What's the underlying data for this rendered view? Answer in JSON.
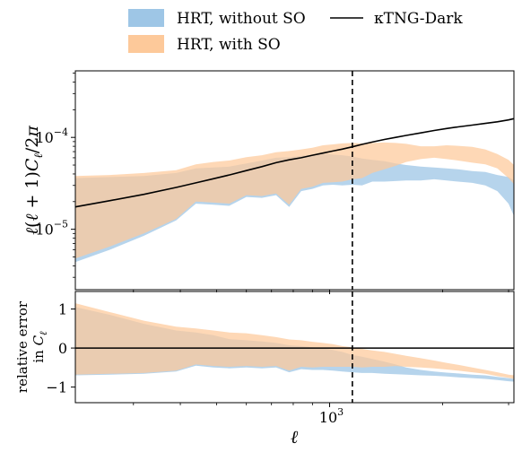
{
  "chart_data": {
    "type": "area",
    "legend": {
      "placement": "top",
      "entries": [
        {
          "label": "HRT, without SO",
          "kind": "band",
          "color": "#9ec6e6"
        },
        {
          "label": "HRT, with SO",
          "kind": "band",
          "color": "#fdc99a"
        },
        {
          "label": "κTNG-Dark",
          "kind": "line",
          "color": "#000000"
        }
      ]
    },
    "x_axis": {
      "label": "ℓ",
      "scale": "log",
      "range": [
        210,
        3100
      ],
      "major_ticks": [
        {
          "value": 1000,
          "label": "10",
          "exponent": "3"
        }
      ],
      "minor_ticks": [
        300,
        400,
        500,
        600,
        700,
        800,
        900,
        2000,
        3000
      ]
    },
    "vline": {
      "x": 1150,
      "style": "dashed",
      "color": "#000000"
    },
    "panels": [
      {
        "id": "spectrum",
        "ylabel": "ℓ(ℓ + 1)C_ℓ/2π",
        "yscale": "log",
        "ylim": [
          2.2e-06,
          0.00053
        ],
        "y_ticks": [
          {
            "value": 1e-05,
            "label": "10",
            "exponent": "−5"
          },
          {
            "value": 0.0001,
            "label": "10",
            "exponent": "−4"
          }
        ],
        "y_minor_ticks": [
          3e-06,
          4e-06,
          5e-06,
          6e-06,
          7e-06,
          8e-06,
          9e-06,
          2e-05,
          3e-05,
          4e-05,
          5e-05,
          6e-05,
          7e-05,
          8e-05,
          9e-05,
          0.0002,
          0.0003,
          0.0004,
          0.0005
        ],
        "series": [
          {
            "name": "HRT, without SO",
            "kind": "band",
            "color": "#9ec6e6",
            "x": [
              210,
              260,
              320,
              390,
              440,
              490,
              540,
              600,
              660,
              720,
              780,
              840,
              900,
              960,
              1020,
              1080,
              1150,
              1220,
              1300,
              1400,
              1500,
              1600,
              1750,
              1900,
              2050,
              2200,
              2400,
              2600,
              2800,
              3000,
              3100
            ],
            "lower": [
              4.4e-06,
              6e-06,
              8.5e-06,
              1.25e-05,
              1.9e-05,
              1.85e-05,
              1.8e-05,
              2.25e-05,
              2.2e-05,
              2.35e-05,
              1.75e-05,
              2.6e-05,
              2.75e-05,
              3e-05,
              3.05e-05,
              3e-05,
              3.05e-05,
              3e-05,
              3.3e-05,
              3.3e-05,
              3.35e-05,
              3.4e-05,
              3.4e-05,
              3.5e-05,
              3.4e-05,
              3.3e-05,
              3.2e-05,
              3e-05,
              2.6e-05,
              1.9e-05,
              1.4e-05
            ],
            "upper": [
              3.6e-05,
              3.7e-05,
              3.8e-05,
              4.1e-05,
              4.6e-05,
              4.7e-05,
              4.8e-05,
              5.2e-05,
              5.6e-05,
              6e-05,
              6.1e-05,
              6.3e-05,
              6.5e-05,
              6.7e-05,
              6.5e-05,
              6.4e-05,
              6.2e-05,
              5.9e-05,
              5.7e-05,
              5.5e-05,
              5.2e-05,
              5e-05,
              4.8e-05,
              4.7e-05,
              4.6e-05,
              4.5e-05,
              4.3e-05,
              4.2e-05,
              3.9e-05,
              3.7e-05,
              3.4e-05
            ]
          },
          {
            "name": "HRT, with SO",
            "kind": "band",
            "color": "#fdc99a",
            "x": [
              210,
              260,
              320,
              390,
              440,
              490,
              540,
              600,
              660,
              720,
              780,
              840,
              900,
              960,
              1020,
              1080,
              1150,
              1220,
              1300,
              1400,
              1500,
              1600,
              1750,
              1900,
              2050,
              2200,
              2400,
              2600,
              2800,
              3000,
              3100
            ],
            "lower": [
              4.8e-06,
              6.5e-06,
              9e-06,
              1.3e-05,
              2e-05,
              1.95e-05,
              1.9e-05,
              2.35e-05,
              2.3e-05,
              2.45e-05,
              1.85e-05,
              2.75e-05,
              2.9e-05,
              3.2e-05,
              3.25e-05,
              3.3e-05,
              3.5e-05,
              3.6e-05,
              4.1e-05,
              4.5e-05,
              4.9e-05,
              5.4e-05,
              5.8e-05,
              6e-05,
              5.8e-05,
              5.6e-05,
              5.3e-05,
              5.1e-05,
              4.6e-05,
              3.6e-05,
              3.1e-05
            ],
            "upper": [
              3.8e-05,
              3.9e-05,
              4.1e-05,
              4.4e-05,
              5.1e-05,
              5.4e-05,
              5.6e-05,
              6.1e-05,
              6.4e-05,
              6.9e-05,
              7.1e-05,
              7.4e-05,
              7.7e-05,
              8.2e-05,
              8.4e-05,
              8.6e-05,
              8.7e-05,
              8.6e-05,
              8.7e-05,
              8.8e-05,
              8.7e-05,
              8.5e-05,
              8e-05,
              8e-05,
              8.2e-05,
              8.1e-05,
              7.9e-05,
              7.4e-05,
              6.6e-05,
              5.7e-05,
              5e-05
            ]
          },
          {
            "name": "κTNG-Dark",
            "kind": "line",
            "color": "#000000",
            "x": [
              210,
              260,
              320,
              390,
              440,
              490,
              540,
              600,
              660,
              720,
              780,
              840,
              900,
              960,
              1020,
              1080,
              1150,
              1220,
              1300,
              1400,
              1500,
              1600,
              1750,
              1900,
              2050,
              2200,
              2400,
              2600,
              2800,
              3000,
              3100
            ],
            "y": [
              1.75e-05,
              2.05e-05,
              2.4e-05,
              2.85e-05,
              3.2e-05,
              3.55e-05,
              3.9e-05,
              4.35e-05,
              4.8e-05,
              5.3e-05,
              5.7e-05,
              6e-05,
              6.4e-05,
              6.75e-05,
              7.1e-05,
              7.45e-05,
              7.9e-05,
              8.4e-05,
              8.9e-05,
              9.5e-05,
              0.0001,
              0.000105,
              0.000112,
              0.000119,
              0.000125,
              0.00013,
              0.000136,
              0.000142,
              0.000148,
              0.000155,
              0.00016
            ]
          }
        ]
      },
      {
        "id": "relative-error",
        "ylabel": "relative error in C_ℓ",
        "yscale": "linear",
        "ylim": [
          -1.4,
          1.45
        ],
        "y_ticks": [
          {
            "value": 1,
            "label": "1"
          },
          {
            "value": 0,
            "label": "0"
          },
          {
            "value": -1,
            "label": "−1"
          }
        ],
        "zero_line": {
          "y": 0,
          "color": "#000000"
        },
        "series": [
          {
            "name": "HRT, without SO",
            "kind": "band",
            "color": "#9ec6e6",
            "x": [
              210,
              260,
              320,
              390,
              440,
              490,
              540,
              600,
              660,
              720,
              780,
              840,
              900,
              960,
              1020,
              1080,
              1150,
              1220,
              1300,
              1400,
              1500,
              1600,
              1750,
              1900,
              2050,
              2200,
              2400,
              2600,
              2800,
              3000,
              3100
            ],
            "lower": [
              -0.7,
              -0.68,
              -0.66,
              -0.6,
              -0.45,
              -0.5,
              -0.52,
              -0.5,
              -0.52,
              -0.5,
              -0.62,
              -0.54,
              -0.56,
              -0.56,
              -0.58,
              -0.6,
              -0.62,
              -0.64,
              -0.64,
              -0.66,
              -0.67,
              -0.68,
              -0.7,
              -0.71,
              -0.73,
              -0.75,
              -0.77,
              -0.79,
              -0.82,
              -0.85,
              -0.86
            ],
            "upper": [
              1.05,
              0.85,
              0.62,
              0.45,
              0.4,
              0.33,
              0.23,
              0.2,
              0.17,
              0.13,
              0.07,
              0.05,
              0.02,
              0.0,
              -0.05,
              -0.1,
              -0.18,
              -0.22,
              -0.28,
              -0.35,
              -0.42,
              -0.5,
              -0.56,
              -0.6,
              -0.63,
              -0.65,
              -0.68,
              -0.7,
              -0.74,
              -0.77,
              -0.79
            ]
          },
          {
            "name": "HRT, with SO",
            "kind": "band",
            "color": "#fdc99a",
            "x": [
              210,
              260,
              320,
              390,
              440,
              490,
              540,
              600,
              660,
              720,
              780,
              840,
              900,
              960,
              1020,
              1080,
              1150,
              1220,
              1300,
              1400,
              1500,
              1600,
              1750,
              1900,
              2050,
              2200,
              2400,
              2600,
              2800,
              3000,
              3100
            ],
            "lower": [
              -0.68,
              -0.66,
              -0.64,
              -0.58,
              -0.42,
              -0.46,
              -0.48,
              -0.46,
              -0.48,
              -0.46,
              -0.58,
              -0.48,
              -0.5,
              -0.48,
              -0.48,
              -0.48,
              -0.48,
              -0.5,
              -0.48,
              -0.48,
              -0.46,
              -0.48,
              -0.5,
              -0.52,
              -0.55,
              -0.58,
              -0.62,
              -0.66,
              -0.72,
              -0.76,
              -0.79
            ],
            "upper": [
              1.15,
              0.92,
              0.7,
              0.55,
              0.5,
              0.45,
              0.4,
              0.38,
              0.33,
              0.28,
              0.22,
              0.2,
              0.16,
              0.13,
              0.1,
              0.05,
              0.02,
              -0.02,
              -0.06,
              -0.1,
              -0.15,
              -0.2,
              -0.26,
              -0.32,
              -0.38,
              -0.43,
              -0.5,
              -0.56,
              -0.62,
              -0.68,
              -0.7
            ]
          }
        ]
      }
    ]
  }
}
